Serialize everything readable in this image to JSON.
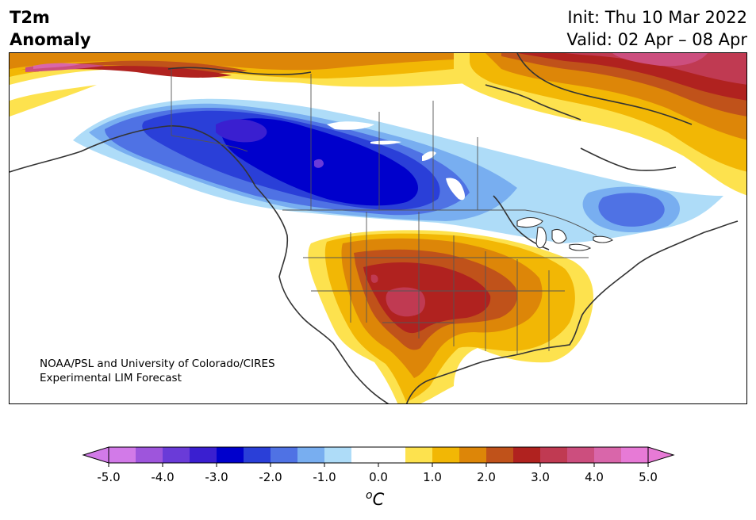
{
  "header": {
    "variable": "T2m",
    "subtitle": "Anomaly",
    "init": "Init: Thu 10 Mar 2022",
    "valid": "Valid: 02 Apr – 08 Apr"
  },
  "credit": {
    "line1": "NOAA/PSL and University of Colorado/CIRES",
    "line2": "Experimental LIM Forecast"
  },
  "colorbar": {
    "unit_sup": "o",
    "unit": "C",
    "ticks": [
      "-5.0",
      "-4.0",
      "-3.0",
      "-2.0",
      "-1.0",
      "0.0",
      "1.0",
      "2.0",
      "3.0",
      "4.0",
      "5.0"
    ],
    "colors": [
      "#d27ae8",
      "#9e55dc",
      "#6a3bd8",
      "#3a1fd0",
      "#0000cc",
      "#2a3fd8",
      "#4f72e4",
      "#78aef0",
      "#aedcf8",
      "#ffffff",
      "#ffffff",
      "#fde24e",
      "#f2b705",
      "#dd8608",
      "#c0521a",
      "#b0221f",
      "#c03a52",
      "#cc4e7e",
      "#d966aa",
      "#e77ad6"
    ],
    "under_color": "#d27ae8",
    "over_color": "#e77ad6"
  }
}
